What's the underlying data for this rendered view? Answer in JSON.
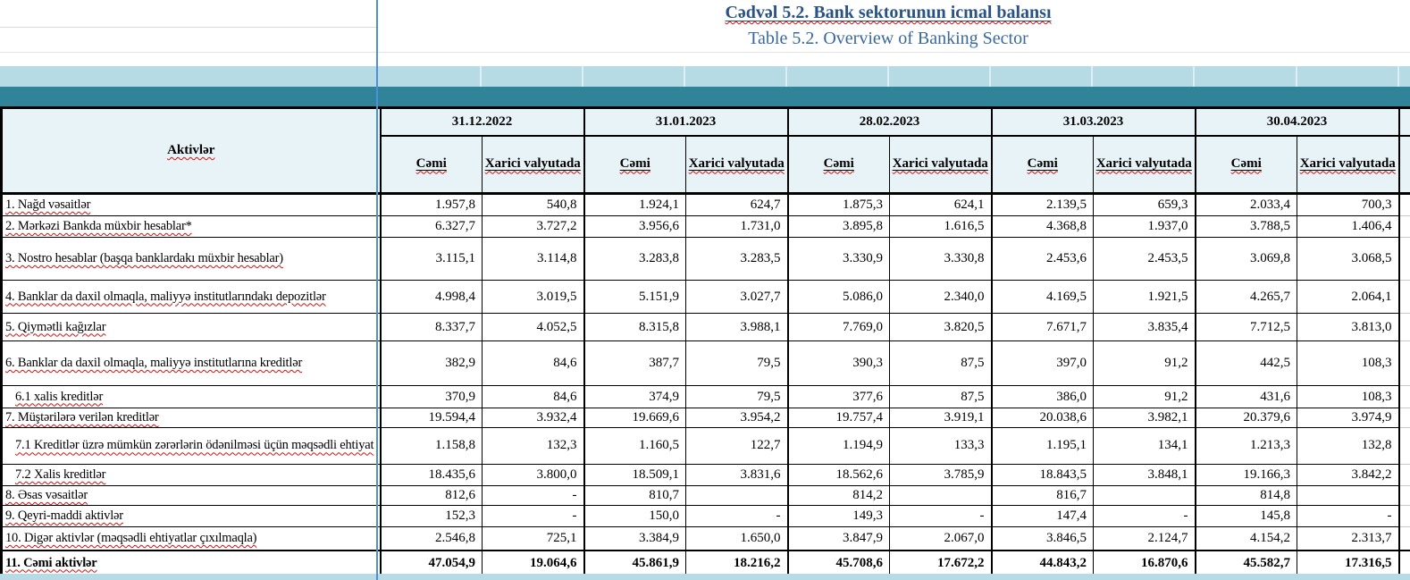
{
  "titles": {
    "az": "Cədvəl 5.2. Bank sektorunun icmal balansı",
    "en": "Table 5.2. Overview of Banking Sector"
  },
  "table": {
    "row_header_label": "Aktivlər",
    "date_groups": [
      "31.12.2022",
      "31.01.2023",
      "28.02.2023",
      "31.03.2023",
      "30.04.2023"
    ],
    "subheaders": {
      "total": "Cəmi",
      "foreign": "Xarici valyutada"
    },
    "rows": [
      {
        "label": "1. Nağd vəsaitlər",
        "indent": false,
        "bold": false,
        "values": [
          "1.957,8",
          "540,8",
          "1.924,1",
          "624,7",
          "1.875,3",
          "624,1",
          "2.139,5",
          "659,3",
          "2.033,4",
          "700,3"
        ]
      },
      {
        "label": "2. Mərkəzi Bankda müxbir hesablar*",
        "indent": false,
        "bold": false,
        "values": [
          "6.327,7",
          "3.727,2",
          "3.956,6",
          "1.731,0",
          "3.895,8",
          "1.616,5",
          "4.368,8",
          "1.937,0",
          "3.788,5",
          "1.406,4"
        ]
      },
      {
        "label": "3. Nostro hesablar (başqa banklardakı müxbir hesablar)",
        "indent": false,
        "bold": false,
        "values": [
          "3.115,1",
          "3.114,8",
          "3.283,8",
          "3.283,5",
          "3.330,9",
          "3.330,8",
          "2.453,6",
          "2.453,5",
          "3.069,8",
          "3.068,5"
        ]
      },
      {
        "label": "4. Banklar da daxil olmaqla, maliyyə institutlarındakı depozitlər",
        "indent": false,
        "bold": false,
        "values": [
          "4.998,4",
          "3.019,5",
          "5.151,9",
          "3.027,7",
          "5.086,0",
          "2.340,0",
          "4.169,5",
          "1.921,5",
          "4.265,7",
          "2.064,1"
        ]
      },
      {
        "label": "5. Qiymətli kağızlar",
        "indent": false,
        "bold": false,
        "values": [
          "8.337,7",
          "4.052,5",
          "8.315,8",
          "3.988,1",
          "7.769,0",
          "3.820,5",
          "7.671,7",
          "3.835,4",
          "7.712,5",
          "3.813,0"
        ]
      },
      {
        "label": "6. Banklar da daxil olmaqla, maliyyə institutlarına kreditlər",
        "indent": false,
        "bold": false,
        "values": [
          "382,9",
          "84,6",
          "387,7",
          "79,5",
          "390,3",
          "87,5",
          "397,0",
          "91,2",
          "442,5",
          "108,3"
        ]
      },
      {
        "label": "6.1 xalis kreditlər",
        "indent": true,
        "bold": false,
        "values": [
          "370,9",
          "84,6",
          "374,9",
          "79,5",
          "377,6",
          "87,5",
          "386,0",
          "91,2",
          "431,6",
          "108,3"
        ]
      },
      {
        "label": "7. Müştərilərə verilən kreditlər",
        "indent": false,
        "bold": false,
        "values": [
          "19.594,4",
          "3.932,4",
          "19.669,6",
          "3.954,2",
          "19.757,4",
          "3.919,1",
          "20.038,6",
          "3.982,1",
          "20.379,6",
          "3.974,9"
        ]
      },
      {
        "label": "7.1 Kreditlər üzrə mümkün zərərlərin ödənilməsi üçün məqsədli ehtiyat",
        "indent": true,
        "bold": false,
        "values": [
          "1.158,8",
          "132,3",
          "1.160,5",
          "122,7",
          "1.194,9",
          "133,3",
          "1.195,1",
          "134,1",
          "1.213,3",
          "132,8"
        ]
      },
      {
        "label": "7.2 Xalis kreditlər",
        "indent": true,
        "bold": false,
        "values": [
          "18.435,6",
          "3.800,0",
          "18.509,1",
          "3.831,6",
          "18.562,6",
          "3.785,9",
          "18.843,5",
          "3.848,1",
          "19.166,3",
          "3.842,2"
        ]
      },
      {
        "label": "8.  Əsas vəsaitlər",
        "indent": false,
        "bold": false,
        "values": [
          "812,6",
          "-",
          "810,7",
          "",
          "814,2",
          "",
          "816,7",
          "",
          "814,8",
          ""
        ]
      },
      {
        "label": "9. Qeyri-maddi aktivlər",
        "indent": false,
        "bold": false,
        "values": [
          "152,3",
          "-",
          "150,0",
          "-",
          "149,3",
          "-",
          "147,4",
          "-",
          "145,8",
          "-"
        ]
      },
      {
        "label": "10. Digər aktivlər (məqsədli ehtiyatlar çıxılmaqla)",
        "indent": false,
        "bold": false,
        "values": [
          "2.546,8",
          "725,1",
          "3.384,9",
          "1.650,0",
          "3.847,9",
          "2.067,0",
          "3.846,5",
          "2.124,7",
          "4.154,2",
          "2.313,7"
        ]
      },
      {
        "label": "11. Cəmi aktivlər",
        "indent": false,
        "bold": true,
        "values": [
          "47.054,9",
          "19.064,6",
          "45.861,9",
          "18.216,2",
          "45.708,6",
          "17.672,2",
          "44.843,2",
          "16.870,6",
          "45.582,7",
          "17.316,5"
        ]
      }
    ]
  },
  "colors": {
    "title_az": "#2a5385",
    "title_en": "#39699b",
    "band_light_blue": "#b7dbe5",
    "band_teal": "#2f8499",
    "header_cell_bg": "#e8f3f8",
    "page_break_line_blue": "#4f8fd6",
    "spellcheck_wavy_red": "#cc1111",
    "cell_text": "#000000"
  }
}
